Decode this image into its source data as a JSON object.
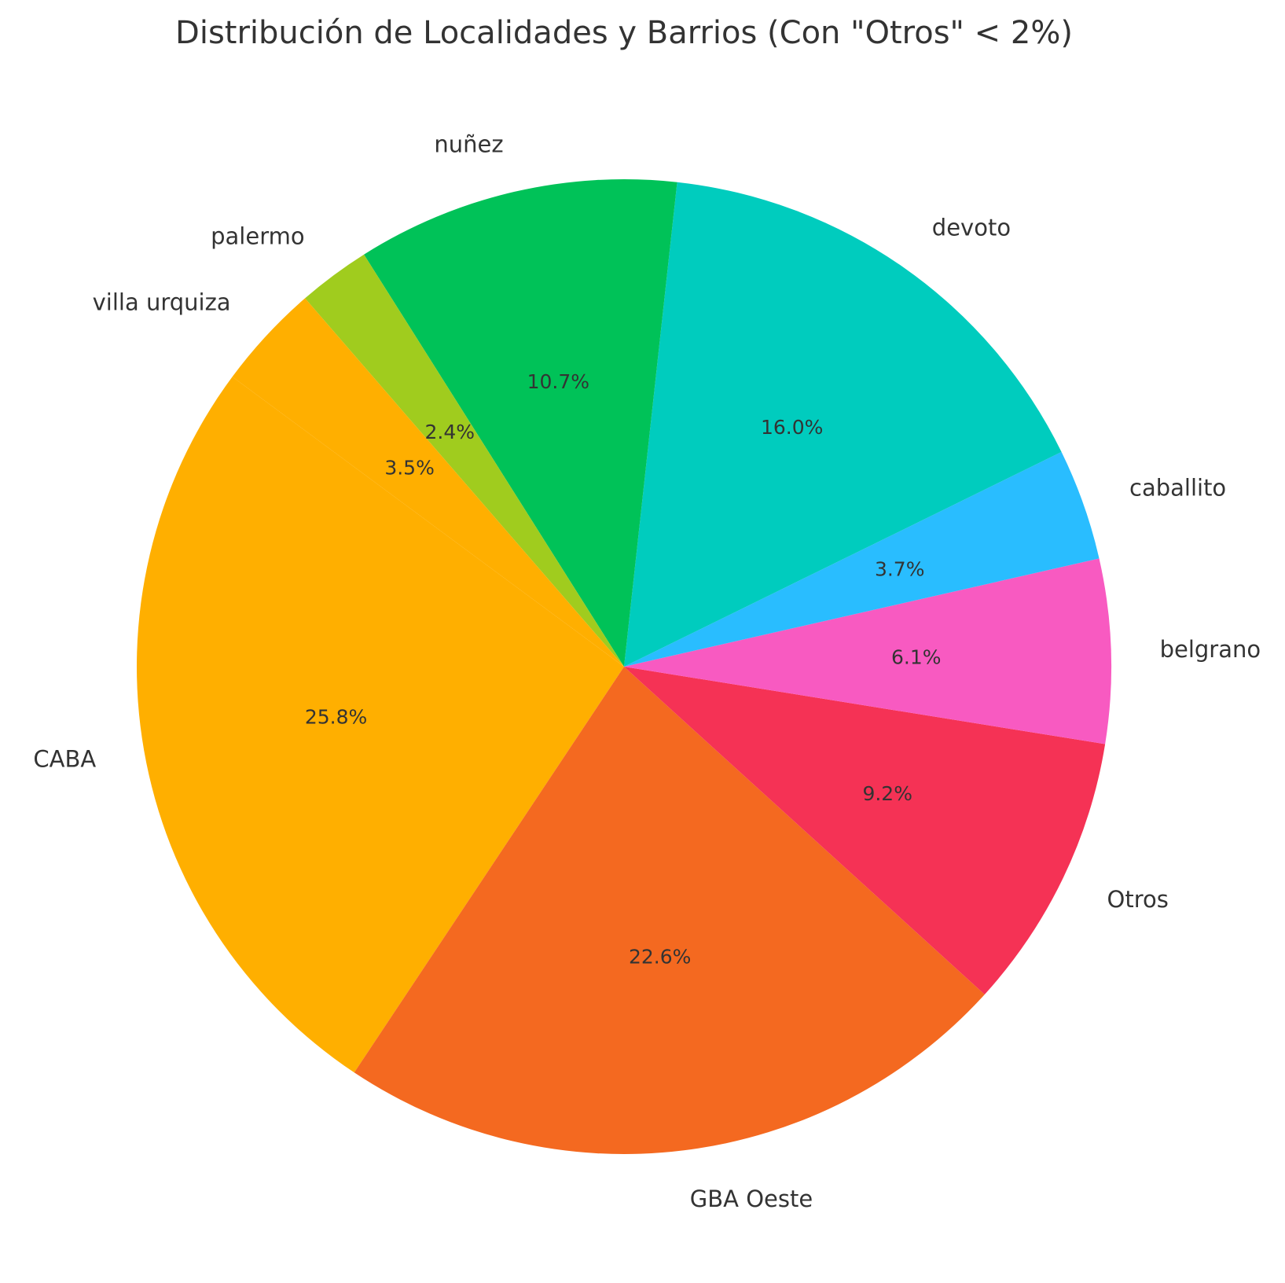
{
  "chart_data": {
    "type": "pie",
    "title": "Distribución de Localidades y Barrios (Con \"Otros\" < 2%)",
    "slices": [
      {
        "label": "CABA",
        "value": 25.8,
        "pct_label": "25.8%",
        "color": "#FFAF00"
      },
      {
        "label": "GBA Oeste",
        "value": 22.6,
        "pct_label": "22.6%",
        "color": "#F46920"
      },
      {
        "label": "Otros",
        "value": 9.2,
        "pct_label": "9.2%",
        "color": "#F53255"
      },
      {
        "label": "belgrano",
        "value": 6.1,
        "pct_label": "6.1%",
        "color": "#F85AC1"
      },
      {
        "label": "caballito",
        "value": 3.7,
        "pct_label": "3.7%",
        "color": "#29BDFF"
      },
      {
        "label": "devoto",
        "value": 16.0,
        "pct_label": "16.0%",
        "color": "#00CCBE"
      },
      {
        "label": "nuñez",
        "value": 10.7,
        "pct_label": "10.7%",
        "color": "#00C258"
      },
      {
        "label": "palermo",
        "value": 2.4,
        "pct_label": "2.4%",
        "color": "#A0CC1E"
      },
      {
        "label": "villa urquiza",
        "value": 3.5,
        "pct_label": "3.5%",
        "color": "#FFAF00"
      }
    ]
  }
}
